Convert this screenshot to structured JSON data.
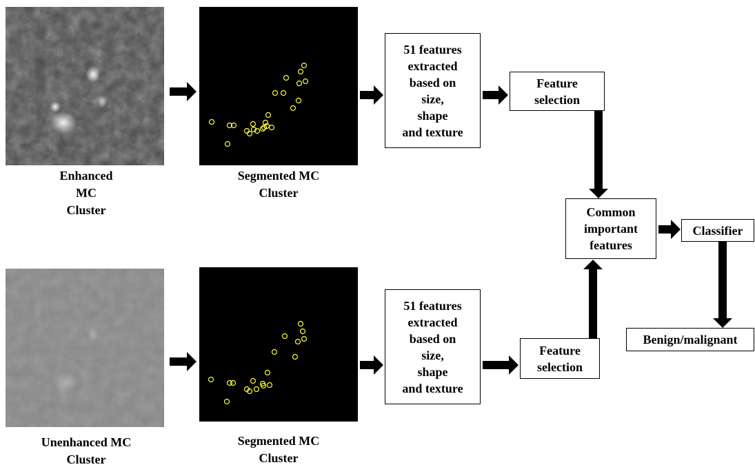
{
  "images": [
    {
      "caption": [
        "Enhanced",
        "MC",
        "Cluster"
      ]
    },
    {
      "caption": [
        "Segmented MC",
        "Cluster"
      ]
    },
    {
      "caption": [
        "Unenhanced MC",
        "Cluster"
      ]
    },
    {
      "caption": [
        "Segmented MC",
        "Cluster"
      ]
    }
  ],
  "boxes": [
    {
      "lines": [
        "51 features",
        "extracted",
        "based on",
        "size,",
        "shape",
        "and texture"
      ]
    },
    {
      "lines": [
        "Feature",
        "selection"
      ]
    },
    {
      "lines": [
        "51 features",
        "extracted",
        "based on",
        "size,",
        "shape",
        "and texture"
      ]
    },
    {
      "lines": [
        "Feature",
        "selection"
      ]
    },
    {
      "lines": [
        "Common",
        "important",
        "features"
      ]
    },
    {
      "lines": [
        "Classifier"
      ]
    },
    {
      "lines": [
        "Benign/malignant"
      ]
    }
  ]
}
